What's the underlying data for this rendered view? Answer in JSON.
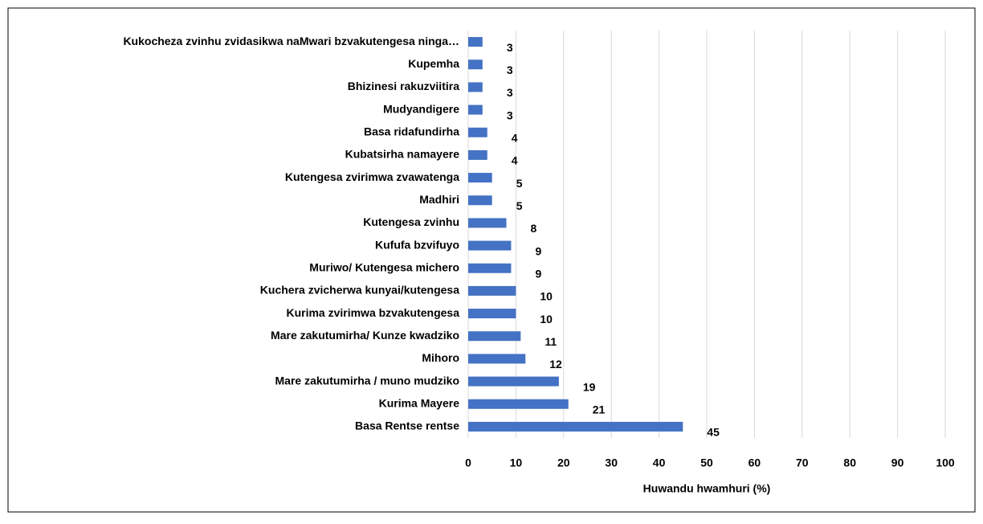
{
  "chart_data": {
    "type": "bar",
    "orientation": "horizontal",
    "x_label": "Huwandu hwamhuri (%)",
    "categories": [
      "Kukocheza zvinhu zvidasikwa naMwari bzvakutengesa ninga…",
      "Kupemha",
      "Bhizinesi rakuzviitira",
      "Mudyandigere",
      "Basa ridafundirha",
      "Kubatsirha namayere",
      "Kutengesa zvirimwa zvawatenga",
      "Madhiri",
      "Kutengesa zvinhu",
      "Kufufa bzvifuyo",
      "Muriwo/ Kutengesa michero",
      "Kuchera zvicherwa kunyai/kutengesa",
      "Kurima zvirimwa bzvakutengesa",
      "Mare zakutumirha/ Kunze kwadziko",
      "Mihoro",
      "Mare zakutumirha / muno mudziko",
      "Kurima Mayere",
      "Basa Rentse rentse"
    ],
    "values": [
      3,
      3,
      3,
      3,
      4,
      4,
      5,
      5,
      8,
      9,
      9,
      10,
      10,
      11,
      12,
      19,
      21,
      45
    ],
    "color": "#4472c4",
    "xlim": [
      0,
      100
    ],
    "xticks": [
      0,
      10,
      20,
      30,
      40,
      50,
      60,
      70,
      80,
      90,
      100
    ],
    "grid": true
  }
}
